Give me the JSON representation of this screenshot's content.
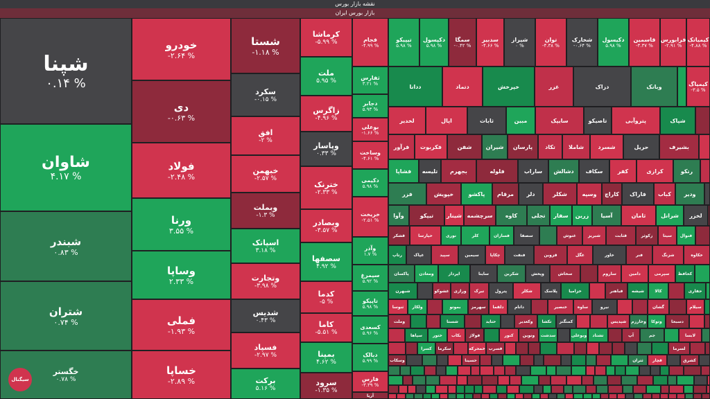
{
  "header": {
    "title": "نقشه بازار بورس",
    "subtitle": "بازار بورس ایران"
  },
  "logo": {
    "text": "سیگنال"
  },
  "tiles": [
    {
      "name": "شپنا",
      "pct": "۰.۱۴ %",
      "color": "gray"
    },
    {
      "name": "شاوان",
      "pct": "۴.۱۷ %",
      "color": "green"
    },
    {
      "name": "شبندر",
      "pct": "۰.۸۳ %",
      "color": "dgreen"
    },
    {
      "name": "شتران",
      "pct": "۰.۷۴ %",
      "color": "dgreen"
    },
    {
      "name": "خگستر",
      "pct": "۰.۷۸ %",
      "color": "dgreen"
    },
    {
      "name": "خودرو",
      "pct": "-۲.۶۴ %",
      "color": "red"
    },
    {
      "name": "دی",
      "pct": "-۰.۶۳ %",
      "color": "dred"
    },
    {
      "name": "فولاد",
      "pct": "-۲.۴۸ %",
      "color": "red"
    },
    {
      "name": "ورنا",
      "pct": "۳.۵۵ %",
      "color": "green"
    },
    {
      "name": "وساپا",
      "pct": "۲.۳۳ %",
      "color": "green"
    },
    {
      "name": "فملی",
      "pct": "-۱.۹۳ %",
      "color": "red"
    },
    {
      "name": "خساپا",
      "pct": "-۲.۸۹ %",
      "color": "red"
    },
    {
      "name": "شستا",
      "pct": "-۱.۱۸ %",
      "color": "dred"
    },
    {
      "name": "سکرد",
      "pct": "-۰.۱۵ %",
      "color": "gray"
    },
    {
      "name": "افق",
      "pct": "-۲ %",
      "color": "red"
    },
    {
      "name": "خبهمن",
      "pct": "-۲.۵۷ %",
      "color": "red"
    },
    {
      "name": "وبملت",
      "pct": "-۱.۳ %",
      "color": "dred"
    },
    {
      "name": "اسپاتک",
      "pct": "۳.۱۸ %",
      "color": "green"
    },
    {
      "name": "وتجارت",
      "pct": "-۳.۹۸ %",
      "color": "red"
    },
    {
      "name": "شدیس",
      "pct": "۰.۴۳ %",
      "color": "gray"
    },
    {
      "name": "فسپاد",
      "pct": "-۲.۹۷ %",
      "color": "red"
    },
    {
      "name": "برکت",
      "pct": "۵.۱۶ %",
      "color": "green"
    },
    {
      "name": "کرماشا",
      "pct": "-۵.۹۹ %",
      "color": "red"
    },
    {
      "name": "ملت",
      "pct": "۵.۹۵ %",
      "color": "green"
    },
    {
      "name": "زاگرس",
      "pct": "-۴.۹۶ %",
      "color": "red"
    },
    {
      "name": "وپاسار",
      "pct": "۰.۳۳ %",
      "color": "gray"
    },
    {
      "name": "خترنک",
      "pct": "-۲.۳۳ %",
      "color": "red"
    },
    {
      "name": "وبصادر",
      "pct": "-۳.۵۷ %",
      "color": "red"
    },
    {
      "name": "سصفها",
      "pct": "۴.۹۲ %",
      "color": "green"
    },
    {
      "name": "کدما",
      "pct": "-۵ %",
      "color": "red"
    },
    {
      "name": "کاما",
      "pct": "-۵.۵۱ %",
      "color": "red"
    },
    {
      "name": "بمپنا",
      "pct": "۴.۶۲ %",
      "color": "green"
    },
    {
      "name": "سرود",
      "pct": "-۱.۳۵ %",
      "color": "dred"
    },
    {
      "name": "فجام",
      "pct": "-۴.۹۹ %",
      "color": "red"
    },
    {
      "name": "ثفارس",
      "pct": "۳.۲۱ %",
      "color": "green"
    },
    {
      "name": "دجابر",
      "pct": "۵.۹۳ %",
      "color": "green"
    },
    {
      "name": "بوعلی",
      "pct": "-۱.۶۶ %",
      "color": "red"
    },
    {
      "name": "وساخت",
      "pct": "-۴.۶۱ %",
      "color": "red"
    },
    {
      "name": "دکیمی",
      "pct": "۵.۹۸ %",
      "color": "green"
    },
    {
      "name": "خریخت",
      "pct": "-۲.۵۱ %",
      "color": "red"
    },
    {
      "name": "وآذر",
      "pct": "۱.۷ %",
      "color": "green"
    },
    {
      "name": "سیمرغ",
      "pct": "۵.۹۲ %",
      "color": "green"
    },
    {
      "name": "تاپیکو",
      "pct": "۵.۹۸ %",
      "color": "green"
    },
    {
      "name": "کسعدی",
      "pct": "۵.۹۶ %",
      "color": "green"
    },
    {
      "name": "دبالک",
      "pct": "۵.۹۹ %",
      "color": "green"
    },
    {
      "name": "فارس",
      "pct": "-۳.۳۹ %",
      "color": "red"
    },
    {
      "name": "آریا",
      "pct": "-۰.۶۸ %",
      "color": "dred"
    },
    {
      "name": "تیپیکو",
      "pct": "۵.۹۸ %",
      "color": "green"
    },
    {
      "name": "دکپسول",
      "pct": "۵.۹۸ %",
      "color": "green"
    },
    {
      "name": "سمگا",
      "pct": "-۰.۴۲ %",
      "color": "dred"
    },
    {
      "name": "سدبیر",
      "pct": "-۴.۶۶ %",
      "color": "red"
    },
    {
      "name": "شیراز",
      "pct": "۰ %",
      "color": "gray"
    },
    {
      "name": "توان",
      "pct": "-۴.۳۸ %",
      "color": "red"
    },
    {
      "name": "شخارک",
      "pct": "-۰.۶۴ %",
      "color": "gray"
    },
    {
      "name": "دکیسول",
      "pct": "۵.۹۸ %",
      "color": "green"
    },
    {
      "name": "قاسمین",
      "pct": "-۳.۳۷ %",
      "color": "red"
    },
    {
      "name": "فرابورس",
      "pct": "-۲.۹۱ %",
      "color": "red"
    },
    {
      "name": "کیمیاتک",
      "pct": "-۴.۸۸ %",
      "color": "red"
    },
    {
      "name": "کیمیاگ",
      "pct": "-۳.۵ %",
      "color": "red"
    },
    {
      "name": "کپارس",
      "pct": "۲.۱۲ %",
      "color": "green"
    }
  ],
  "small_labels": [
    "ددانا",
    "دتماد",
    "خپرخش",
    "غزر",
    "دزاک",
    "وبانک",
    "لخدیر",
    "اپال",
    "ثابات",
    "مبین",
    "سایپک",
    "تاصیکو",
    "پتروآبی",
    "شپاک",
    "فرآور",
    "فکربوت",
    "شفن",
    "شیران",
    "پارسان",
    "تکاد",
    "شاملا",
    "شسرد",
    "حریل",
    "بشیرف",
    "فشاپا",
    "تلیسه",
    "بجهرم",
    "فلوله",
    "ساراب",
    "دشالش",
    "سکاف",
    "کفر",
    "کرازی",
    "رتکو",
    "فزر",
    "خپویش",
    "پاکشو",
    "مرقام",
    "دلر",
    "شکلر",
    "وسپه",
    "کاراچ",
    "فاراک",
    "کباب",
    "ودیر",
    "وآوا",
    "تیپکو",
    "شینار",
    "سرچشمه",
    "کاوه",
    "تجلی",
    "سفار",
    "زرین",
    "آسیا",
    "ثامان",
    "شرانل",
    "لخزر",
    "قشکر",
    "حپارسا",
    "نوری",
    "کلر",
    "فسازان",
    "سصفا",
    "غنوش",
    "شبریز",
    "قثابت",
    "زکوثر",
    "سیتا",
    "فنوال",
    "رتاپ",
    "غپاک",
    "سپید",
    "سیمین",
    "چکاپا",
    "فنفت",
    "قزوین",
    "غگل",
    "خاور",
    "فنر",
    "شزنگ",
    "خکاوه",
    "پاکسان",
    "ومعادن",
    "اپرداز",
    "ساینا",
    "شکربن",
    "وپخش",
    "سخاش",
    "ساروم",
    "دامین",
    "سپرمی",
    "کحافظ",
    "شبهرن",
    "غشوکو",
    "ورازی",
    "تبرک",
    "پترول",
    "شکلر",
    "پلاسک",
    "خزامیا",
    "فباهنر",
    "شیشه",
    "کالا",
    "حفاری",
    "ثنوسا",
    "ولکار",
    "بموتو",
    "سهرمز",
    "دلقما",
    "داتام",
    "خنصیر",
    "ساوه",
    "نیرو",
    "گشان",
    "سیلام",
    "وملت",
    "شستا",
    "حتاید",
    "وکغدیر",
    "تکشا",
    "کمنگنز",
    "شپدیس",
    "وخارزم",
    "وتوکا",
    "دسبحا",
    "سپاها",
    "ختور",
    "بکاب",
    "فولاژ",
    "کنور",
    "ونوین",
    "سدشت",
    "وبوعلی",
    "تشتاد",
    "آپ",
    "جم",
    "لابسا",
    "کسرا",
    "سکرما",
    "خمحرکه",
    "فسرب",
    "لسرما",
    "وسکاب",
    "حسینا",
    "ثتران",
    "قچار",
    "کشرق",
    "دفارا",
    "خرینگ",
    "دلقما",
    "وپارس",
    "ومهان",
    "ثشرق",
    "اخابر",
    "کاذر",
    "وتوسم",
    "لبوتان",
    "شبصیر",
    "سپ",
    "وسینا",
    "خاهن",
    "شسپا",
    "دسینا",
    "وغدیر"
  ]
}
